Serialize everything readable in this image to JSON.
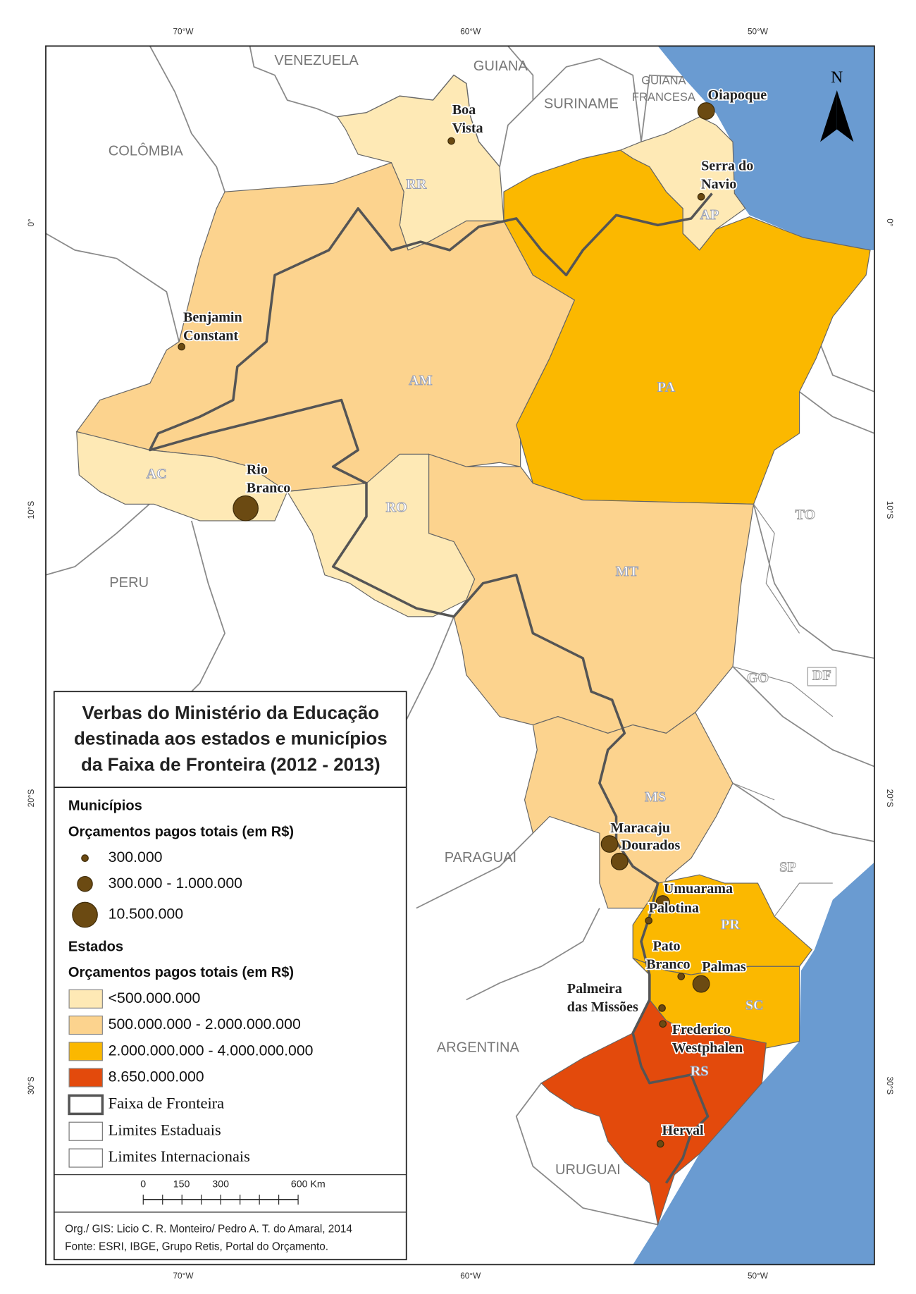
{
  "graticule": {
    "longitudes": [
      "70°W",
      "60°W",
      "50°W"
    ],
    "latitudes": [
      "0°",
      "10°S",
      "20°S",
      "30°S"
    ]
  },
  "north": "N",
  "countries": [
    [
      "VENEZUELA"
    ],
    [
      "GUIANA"
    ],
    [
      "SURINAME"
    ],
    [
      "GUIANA",
      "FRANCESA"
    ],
    [
      "COLÔMBIA"
    ],
    [
      "PERU"
    ],
    [
      "PARAGUAI"
    ],
    [
      "ARGENTINA"
    ],
    [
      "URUGUAI"
    ]
  ],
  "states": [
    {
      "name": "RR",
      "color": "#fee9b5"
    },
    {
      "name": "AP",
      "color": "#fee9b5"
    },
    {
      "name": "AM",
      "color": "#fcd38e"
    },
    {
      "name": "PA",
      "color": "#fbb800"
    },
    {
      "name": "AC",
      "color": "#fee9b5"
    },
    {
      "name": "RO",
      "color": "#fee9b5"
    },
    {
      "name": "MT",
      "color": "#fcd38e"
    },
    {
      "name": "MS",
      "color": "#fcd38e"
    },
    {
      "name": "PR",
      "color": "#fbb800"
    },
    {
      "name": "SC",
      "color": "#fbb800"
    },
    {
      "name": "RS",
      "color": "#e34a0c"
    }
  ],
  "other_states": [
    "TO",
    "GO",
    "DF",
    "SP"
  ],
  "municipalities": [
    [
      "Boa",
      "Vista"
    ],
    [
      "Oiapoque"
    ],
    [
      "Serra do",
      "Navio"
    ],
    [
      "Benjamin",
      "Constant"
    ],
    [
      "Rio",
      "Branco"
    ],
    [
      "Maracaju"
    ],
    [
      "Dourados"
    ],
    [
      "Umuarama"
    ],
    [
      "Palotina"
    ],
    [
      "Pato",
      "Branco"
    ],
    [
      "Palmas"
    ],
    [
      "Palmeira",
      "das Missões"
    ],
    [
      "Frederico",
      "Westphalen"
    ],
    [
      "Herval"
    ]
  ],
  "legend": {
    "title": [
      "Verbas do Ministério da Educação",
      "destinada aos estados e municípios",
      "da Faixa de Fronteira (2012 - 2013)"
    ],
    "municipal_heading": "Municípios",
    "municipal_subtitle": "Orçamentos pagos totais (em R$)",
    "municipal_classes": [
      "300.000",
      "300.000 - 1.000.000",
      "10.500.000"
    ],
    "state_heading": "Estados",
    "state_subtitle": "Orçamentos pagos totais (em R$)",
    "state_classes": [
      {
        "label": "<500.000.000",
        "color": "#fee9b5"
      },
      {
        "label": "500.000.000 - 2.000.000.000",
        "color": "#fcd38e"
      },
      {
        "label": "2.000.000.000 - 4.000.000.000",
        "color": "#fbb800"
      },
      {
        "label": "8.650.000.000",
        "color": "#e34a0c"
      }
    ],
    "lines": [
      "Faixa de Fronteira",
      "Limites Estaduais",
      "Limites Internacionais"
    ]
  },
  "scale": [
    "0",
    "150",
    "300",
    "600 Km"
  ],
  "credits": [
    "Org./ GIS: Licio C. R. Monteiro/ Pedro A. T. do Amaral, 2014",
    "Fonte: ESRI, IBGE, Grupo Retis, Portal do Orçamento."
  ]
}
